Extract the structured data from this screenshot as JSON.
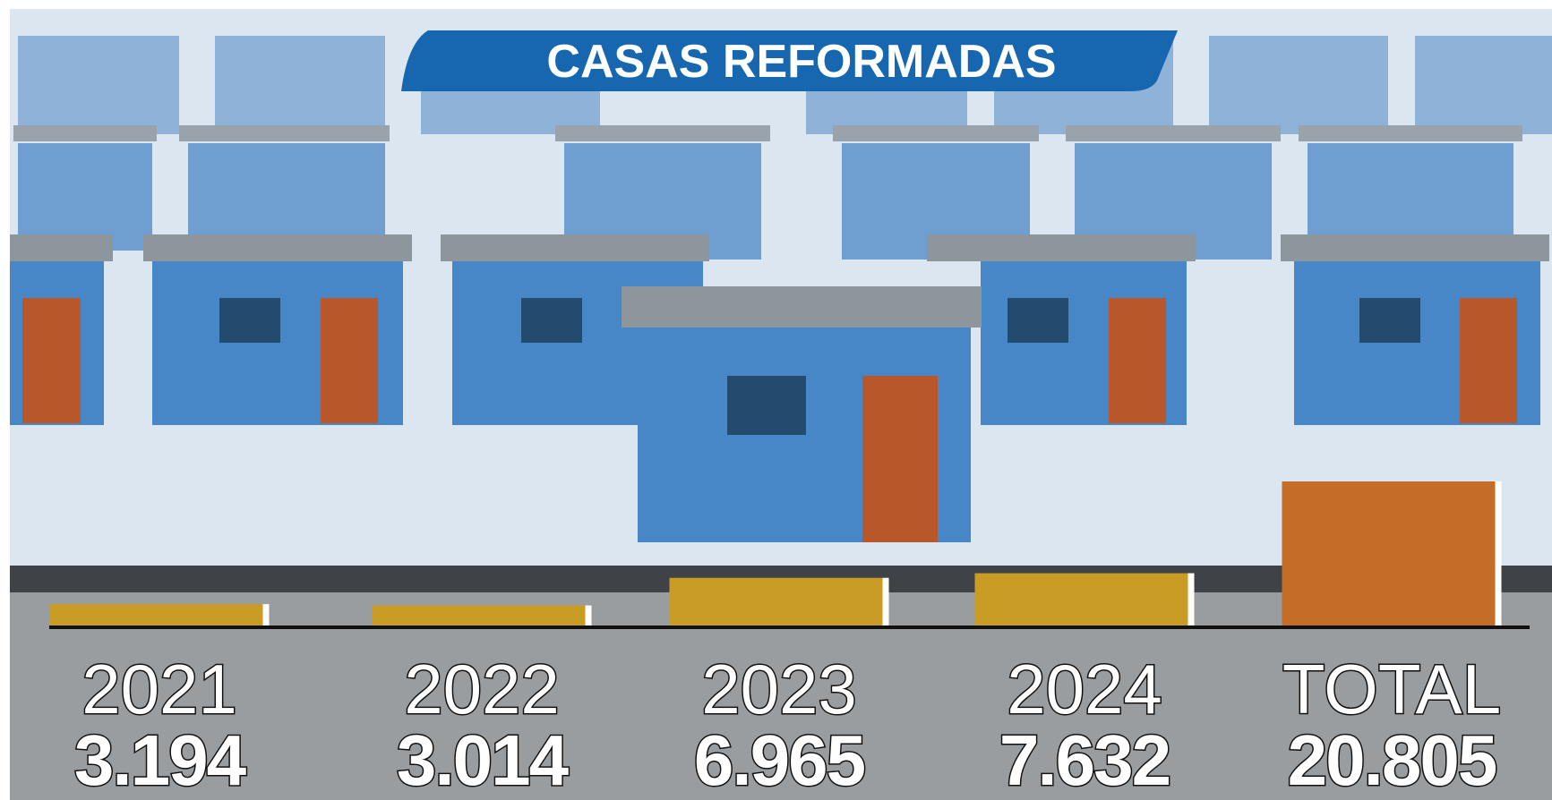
{
  "chart_data": {
    "type": "bar",
    "title": "CASAS REFORMADAS",
    "categories": [
      "2021",
      "2022",
      "2023",
      "2024",
      "TOTAL"
    ],
    "values": [
      3194,
      3014,
      6965,
      7632,
      20805
    ],
    "value_labels": [
      "3.194",
      "3.014",
      "6.965",
      "7.632",
      "20.805"
    ],
    "colors": [
      "#c89c25",
      "#c89c25",
      "#c89c25",
      "#c89c25",
      "#c46d27"
    ]
  }
}
